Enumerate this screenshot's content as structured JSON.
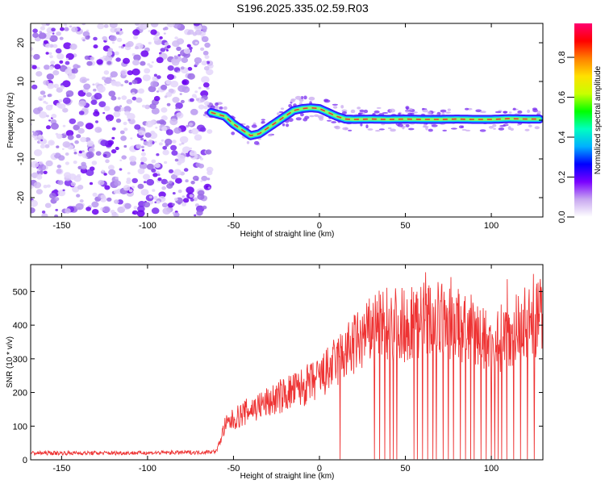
{
  "title": "S196.2025.335.02.59.R03",
  "colors": {
    "spectral_line": "#e8363a",
    "snr_line": "#ee3333"
  },
  "chart_data": [
    {
      "type": "heatmap",
      "xlabel": "Height of straight line (km)",
      "ylabel": "Frequency (Hz)",
      "xlim": [
        -168,
        130
      ],
      "ylim": [
        -25,
        25
      ],
      "xticks": [
        -150,
        -100,
        -50,
        0,
        50,
        100
      ],
      "yticks": [
        -20,
        -10,
        0,
        10,
        20
      ],
      "colorbar": {
        "label": "Normalized spectral amplitude",
        "range": [
          0,
          0.97
        ],
        "ticks": [
          "0.0",
          "0.2",
          "0.4",
          "0.6",
          "0.8"
        ],
        "colors": [
          "#ffffff",
          "#c8a8f0",
          "#7a00ff",
          "#0000ff",
          "#00b0ff",
          "#00ffc0",
          "#00ff00",
          "#c8ff00",
          "#ffe000",
          "#ff8000",
          "#ff0000",
          "#ff0070"
        ]
      },
      "noise_region_x": [
        -168,
        -63
      ],
      "signal_center": {
        "x": [
          -63,
          -55,
          -50,
          -45,
          -40,
          -35,
          -30,
          -25,
          -20,
          -15,
          -10,
          -5,
          0,
          5,
          10,
          15,
          20,
          30,
          40,
          50,
          60,
          70,
          80,
          90,
          100,
          110,
          120,
          128
        ],
        "frequency": [
          2,
          1,
          -1,
          -2.5,
          -4,
          -3.5,
          -2,
          -0.5,
          1,
          2.5,
          3,
          3.2,
          3,
          2,
          1,
          0.3,
          0.2,
          0.3,
          0.2,
          0.3,
          0.2,
          0.2,
          0.3,
          0.2,
          0.2,
          0.4,
          0.3,
          0.3
        ]
      }
    },
    {
      "type": "line",
      "xlabel": "Height of straight line (km)",
      "ylabel": "SNR (10 * v/v)",
      "xlim": [
        -168,
        130
      ],
      "ylim": [
        0,
        580
      ],
      "xticks": [
        -150,
        -100,
        -50,
        0,
        50,
        100
      ],
      "yticks": [
        0,
        100,
        200,
        300,
        400,
        500
      ],
      "series": [
        {
          "trend_x": [
            -168,
            -120,
            -70,
            -60,
            -55,
            -50,
            -40,
            -30,
            -20,
            -10,
            0,
            10,
            20,
            30,
            40,
            50,
            60,
            70,
            80,
            90,
            100,
            110,
            120,
            130
          ],
          "trend_y": [
            20,
            20,
            22,
            25,
            100,
            120,
            150,
            170,
            195,
            215,
            240,
            290,
            340,
            380,
            410,
            400,
            420,
            410,
            400,
            380,
            340,
            380,
            400,
            430
          ],
          "dropout_x": [
            12,
            32,
            35,
            38,
            41,
            43,
            45,
            55,
            57,
            60,
            63,
            66,
            68,
            72,
            75,
            78,
            82,
            85,
            88,
            90,
            94,
            97,
            100,
            102,
            104,
            106,
            109,
            113,
            117,
            121,
            125
          ]
        }
      ]
    }
  ]
}
